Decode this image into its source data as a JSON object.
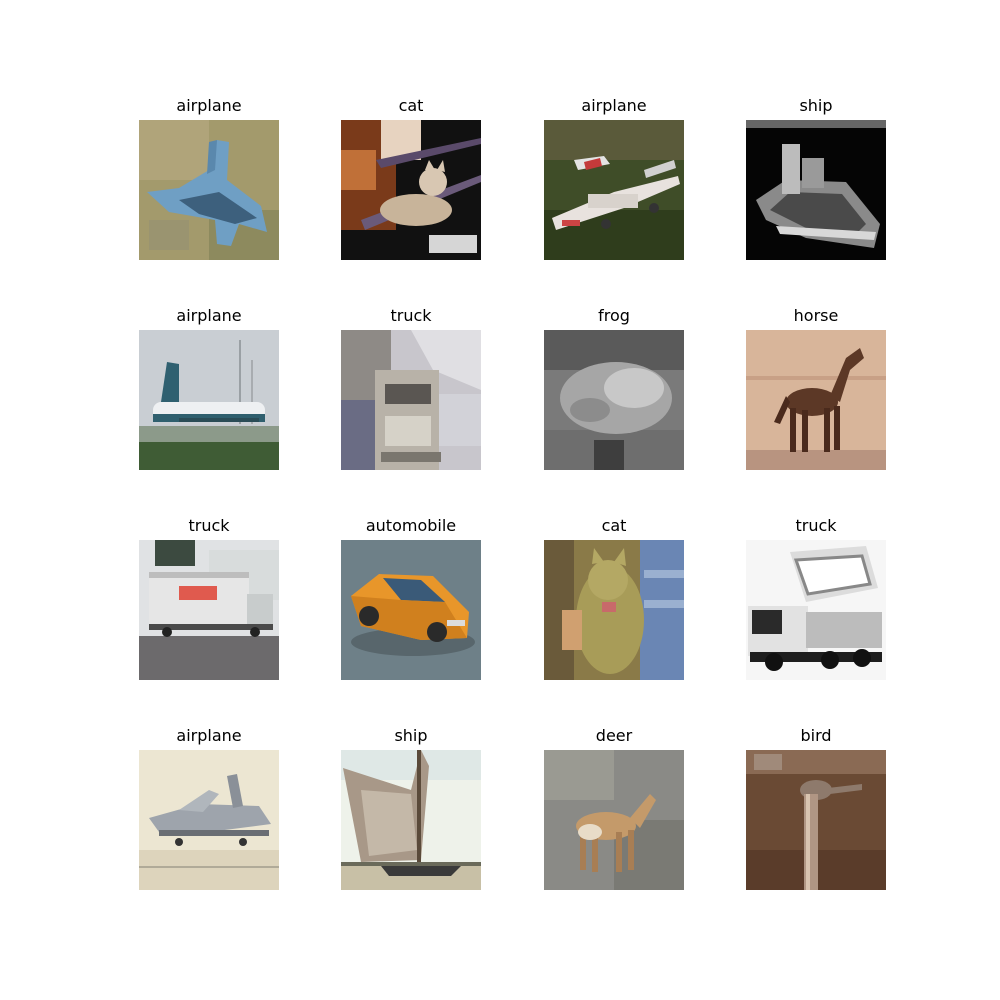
{
  "grid": {
    "images": [
      {
        "label": "airplane",
        "thumb": "blue-jet-on-grass"
      },
      {
        "label": "cat",
        "thumb": "cat-lying-dark-frame"
      },
      {
        "label": "airplane",
        "thumb": "red-white-plane-on-grass"
      },
      {
        "label": "ship",
        "thumb": "white-boat-on-black"
      },
      {
        "label": "airplane",
        "thumb": "airliner-on-runway"
      },
      {
        "label": "truck",
        "thumb": "white-truck-cab-gray"
      },
      {
        "label": "frog",
        "thumb": "grayscale-frog"
      },
      {
        "label": "horse",
        "thumb": "brown-horse-on-sand"
      },
      {
        "label": "truck",
        "thumb": "white-box-truck"
      },
      {
        "label": "automobile",
        "thumb": "orange-sports-car"
      },
      {
        "label": "cat",
        "thumb": "tabby-cat-held"
      },
      {
        "label": "truck",
        "thumb": "white-dump-truck-sketch"
      },
      {
        "label": "airplane",
        "thumb": "gray-plane-on-tarmac"
      },
      {
        "label": "ship",
        "thumb": "sailboat-beige-sail"
      },
      {
        "label": "deer",
        "thumb": "deer-on-gravel"
      },
      {
        "label": "bird",
        "thumb": "ostrich-neck-brown"
      }
    ]
  }
}
